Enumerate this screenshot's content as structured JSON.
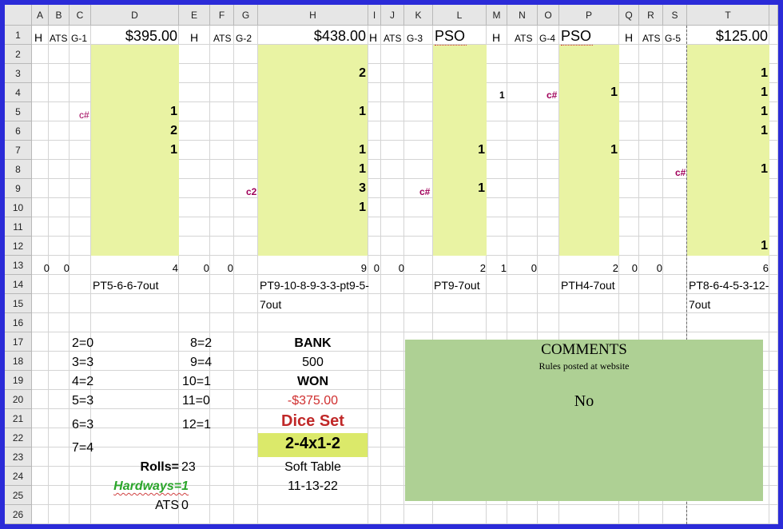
{
  "columns": [
    "A",
    "B",
    "C",
    "D",
    "E",
    "F",
    "G",
    "H",
    "I",
    "J",
    "K",
    "L",
    "M",
    "N",
    "O",
    "P",
    "Q",
    "R",
    "S",
    "T"
  ],
  "rows": [
    "1",
    "2",
    "3",
    "4",
    "5",
    "6",
    "7",
    "8",
    "9",
    "10",
    "11",
    "12",
    "13",
    "14",
    "15",
    "16",
    "17",
    "18",
    "19",
    "20",
    "21",
    "22",
    "23",
    "24",
    "25",
    "26"
  ],
  "row1": {
    "a": "H",
    "b": "ATS",
    "c": "G-1",
    "d": "$395.00",
    "e": "H",
    "f": "ATS",
    "g": "G-2",
    "h": "$438.00",
    "i": "H",
    "j": "ATS",
    "k": "G-3",
    "l": "PSO",
    "m": "H",
    "n": "ATS",
    "o": "G-4",
    "p": "PSO",
    "q": "H",
    "r": "ATS",
    "s": "G-5",
    "t": "$125.00"
  },
  "marks": {
    "h3": "2",
    "t3": "1",
    "m4": "1",
    "o4": "c#",
    "p4": "1",
    "t4": "1",
    "c5": "c#",
    "d5": "1",
    "h5": "1",
    "t5": "1",
    "d6": "2",
    "t6": "1",
    "d7": "1",
    "h7": "1",
    "l7": "1",
    "p7": "1",
    "h8": "1",
    "s8": "c#",
    "t8": "1",
    "g9": "c2",
    "h9": "3",
    "k9": "c#",
    "l9": "1",
    "h10": "1",
    "t12": "1"
  },
  "totals": {
    "a": "0",
    "b": "0",
    "d": "4",
    "e": "0",
    "f": "0",
    "h": "9",
    "i": "0",
    "j": "0",
    "l": "2",
    "m": "1",
    "n": "0",
    "p": "2",
    "q": "0",
    "r": "0",
    "t": "6"
  },
  "sequences": {
    "d": "PT5-6-6-7out",
    "h1": "PT9-10-8-9-3-3-pt9-5-",
    "h2": "7out",
    "l": "PT9-7out",
    "p": "PTH4-7out",
    "t1": "PT8-6-4-5-3-12-",
    "t2": "7out"
  },
  "counts": {
    "c2": "2=0",
    "c3": "3=3",
    "c4": "4=2",
    "c5": "5=3",
    "c6": "6=3",
    "c7": "7=4",
    "c8": "8=2",
    "c9": "9=4",
    "c10": "10=1",
    "c11": "11=0",
    "c12": "12=1"
  },
  "summary": {
    "rolls_label": "Rolls=",
    "rolls_value": "23",
    "hardways": "Hardways=1",
    "ats_label": "ATS",
    "ats_value": "0"
  },
  "bank": {
    "label": "BANK",
    "value": "500",
    "won_label": "WON",
    "won_value": "-$375.00",
    "dice_set_label": "Dice Set",
    "dice_set_value": "2-4x1-2",
    "table_type": "Soft Table",
    "date": "11-13-22"
  },
  "comments": {
    "title": "COMMENTS",
    "subtitle": "Rules posted at website",
    "text": "No"
  },
  "colors": {
    "border": "#2b2bd8",
    "highlight": "#e9f3a3",
    "dice_set_fill": "#dbe96a",
    "comments_fill": "#aed094",
    "marker": "#a0005a",
    "loss": "#d03030",
    "dice_set_text": "#c02828",
    "hardways_text": "#2aa52a"
  }
}
